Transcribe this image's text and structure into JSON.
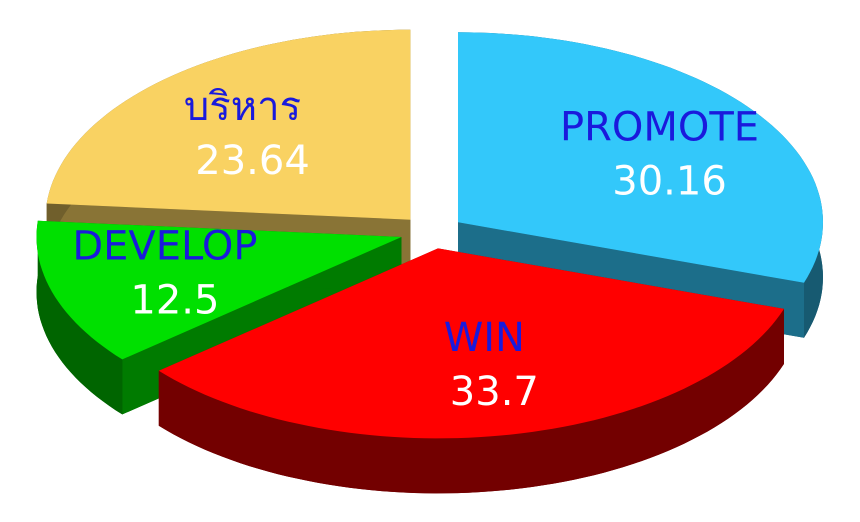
{
  "chart_data": {
    "type": "pie",
    "categories": [
      "PROMOTE",
      "WIN",
      "DEVELOP",
      "บริหาร"
    ],
    "values": [
      30.16,
      33.7,
      12.5,
      23.64
    ],
    "colors": [
      "#33c8fa",
      "#ff0000",
      "#00e000",
      "#f9d262"
    ]
  }
}
